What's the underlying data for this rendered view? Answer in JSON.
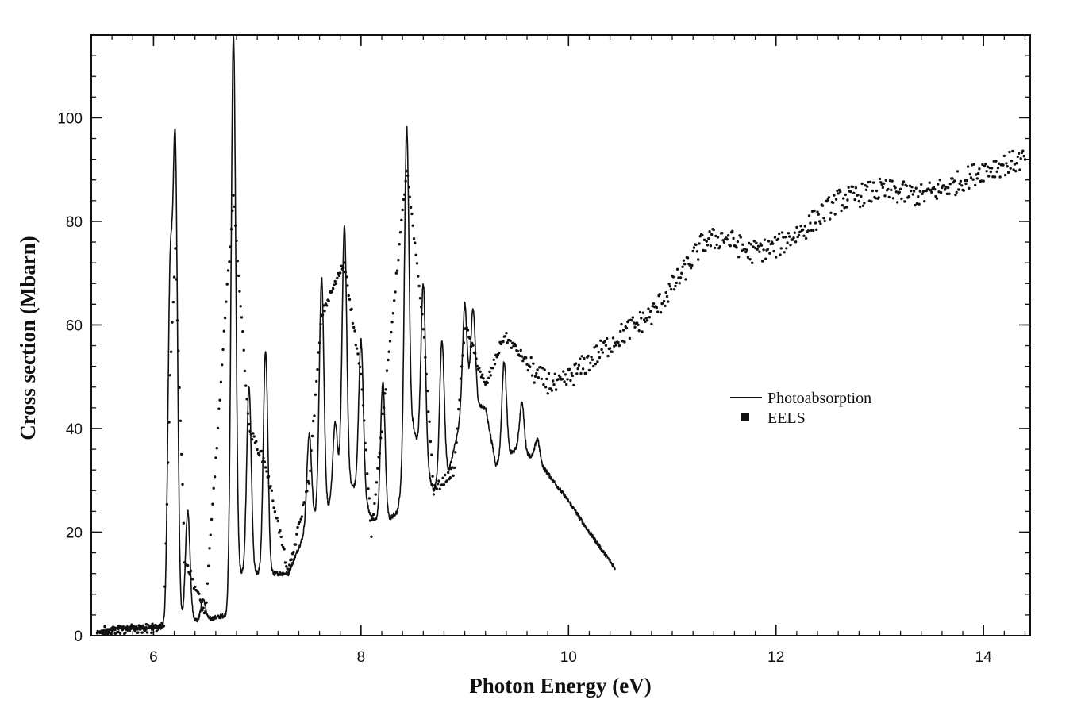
{
  "chart_data": {
    "type": "line",
    "xlabel": "Photon Energy (eV)",
    "ylabel": "Cross section (Mbarn)",
    "xlim": [
      5.4,
      14.45
    ],
    "ylim": [
      0,
      116
    ],
    "x_ticks": [
      6,
      8,
      10,
      12,
      14
    ],
    "x_tick_labels": [
      "6",
      "8",
      "10",
      "12",
      "14"
    ],
    "y_ticks": [
      0,
      20,
      40,
      60,
      80,
      100
    ],
    "y_tick_labels": [
      "0",
      "20",
      "40",
      "60",
      "80",
      "100"
    ],
    "x_minor_step": 0.2,
    "y_minor_step": 4,
    "grid": false,
    "legend_position": "right",
    "legend": [
      {
        "name": "Photoabsorption",
        "marker": "line"
      },
      {
        "name": "EELS",
        "marker": "square"
      }
    ],
    "series": [
      {
        "name": "Photoabsorption",
        "style": "line",
        "baseline": [
          [
            5.45,
            0.5
          ],
          [
            6.1,
            1.5
          ]
        ],
        "background": [
          [
            5.45,
            0.5
          ],
          [
            5.65,
            1.5
          ],
          [
            6.08,
            1.5
          ],
          [
            6.2,
            3
          ],
          [
            6.5,
            3
          ],
          [
            6.7,
            4
          ],
          [
            6.8,
            12
          ],
          [
            7.0,
            12
          ],
          [
            7.2,
            12
          ],
          [
            7.3,
            12
          ],
          [
            7.4,
            17
          ],
          [
            7.5,
            22
          ],
          [
            7.7,
            25
          ],
          [
            7.8,
            30
          ],
          [
            8.0,
            28
          ],
          [
            8.1,
            23
          ],
          [
            8.2,
            21
          ],
          [
            8.35,
            24
          ],
          [
            8.5,
            40
          ],
          [
            8.7,
            28
          ],
          [
            8.85,
            32
          ],
          [
            9.0,
            45
          ],
          [
            9.2,
            44
          ],
          [
            9.3,
            33
          ],
          [
            9.5,
            36
          ],
          [
            9.7,
            34
          ],
          [
            10.0,
            26
          ],
          [
            10.2,
            20
          ],
          [
            10.45,
            13
          ]
        ],
        "peaks": [
          {
            "x": 6.16,
            "y": 67
          },
          {
            "x": 6.21,
            "y": 92
          },
          {
            "x": 6.33,
            "y": 24
          },
          {
            "x": 6.48,
            "y": 7
          },
          {
            "x": 6.77,
            "y": 116
          },
          {
            "x": 6.92,
            "y": 48
          },
          {
            "x": 7.08,
            "y": 55
          },
          {
            "x": 7.5,
            "y": 39
          },
          {
            "x": 7.62,
            "y": 69
          },
          {
            "x": 7.75,
            "y": 41
          },
          {
            "x": 7.84,
            "y": 79
          },
          {
            "x": 8.0,
            "y": 57
          },
          {
            "x": 8.21,
            "y": 49
          },
          {
            "x": 8.44,
            "y": 98
          },
          {
            "x": 8.6,
            "y": 68
          },
          {
            "x": 8.78,
            "y": 57
          },
          {
            "x": 9.0,
            "y": 64
          },
          {
            "x": 9.08,
            "y": 63
          },
          {
            "x": 9.38,
            "y": 53
          },
          {
            "x": 9.55,
            "y": 45
          },
          {
            "x": 9.7,
            "y": 38
          }
        ]
      },
      {
        "name": "EELS",
        "style": "scatter",
        "trend": [
          [
            5.5,
            1
          ],
          [
            6.1,
            1.5
          ],
          [
            6.16,
            50
          ],
          [
            6.21,
            75
          ],
          [
            6.3,
            15
          ],
          [
            6.5,
            4
          ],
          [
            6.77,
            85
          ],
          [
            6.92,
            40
          ],
          [
            7.08,
            33
          ],
          [
            7.3,
            12
          ],
          [
            7.5,
            30
          ],
          [
            7.62,
            62
          ],
          [
            7.84,
            72
          ],
          [
            8.0,
            50
          ],
          [
            8.1,
            20
          ],
          [
            8.21,
            42
          ],
          [
            8.44,
            90
          ],
          [
            8.6,
            60
          ],
          [
            8.7,
            28
          ],
          [
            8.9,
            32
          ],
          [
            9.0,
            60
          ],
          [
            9.2,
            48
          ],
          [
            9.38,
            58
          ],
          [
            9.55,
            54
          ],
          [
            9.7,
            50
          ],
          [
            9.9,
            48
          ],
          [
            10.2,
            53
          ],
          [
            10.5,
            58
          ],
          [
            10.8,
            62
          ],
          [
            11.1,
            70
          ],
          [
            11.3,
            76
          ],
          [
            11.5,
            77
          ],
          [
            11.75,
            74
          ],
          [
            12.0,
            75
          ],
          [
            12.3,
            79
          ],
          [
            12.6,
            84
          ],
          [
            13.0,
            86
          ],
          [
            13.4,
            85
          ],
          [
            13.7,
            87
          ],
          [
            14.0,
            90
          ],
          [
            14.4,
            92
          ]
        ]
      }
    ]
  }
}
